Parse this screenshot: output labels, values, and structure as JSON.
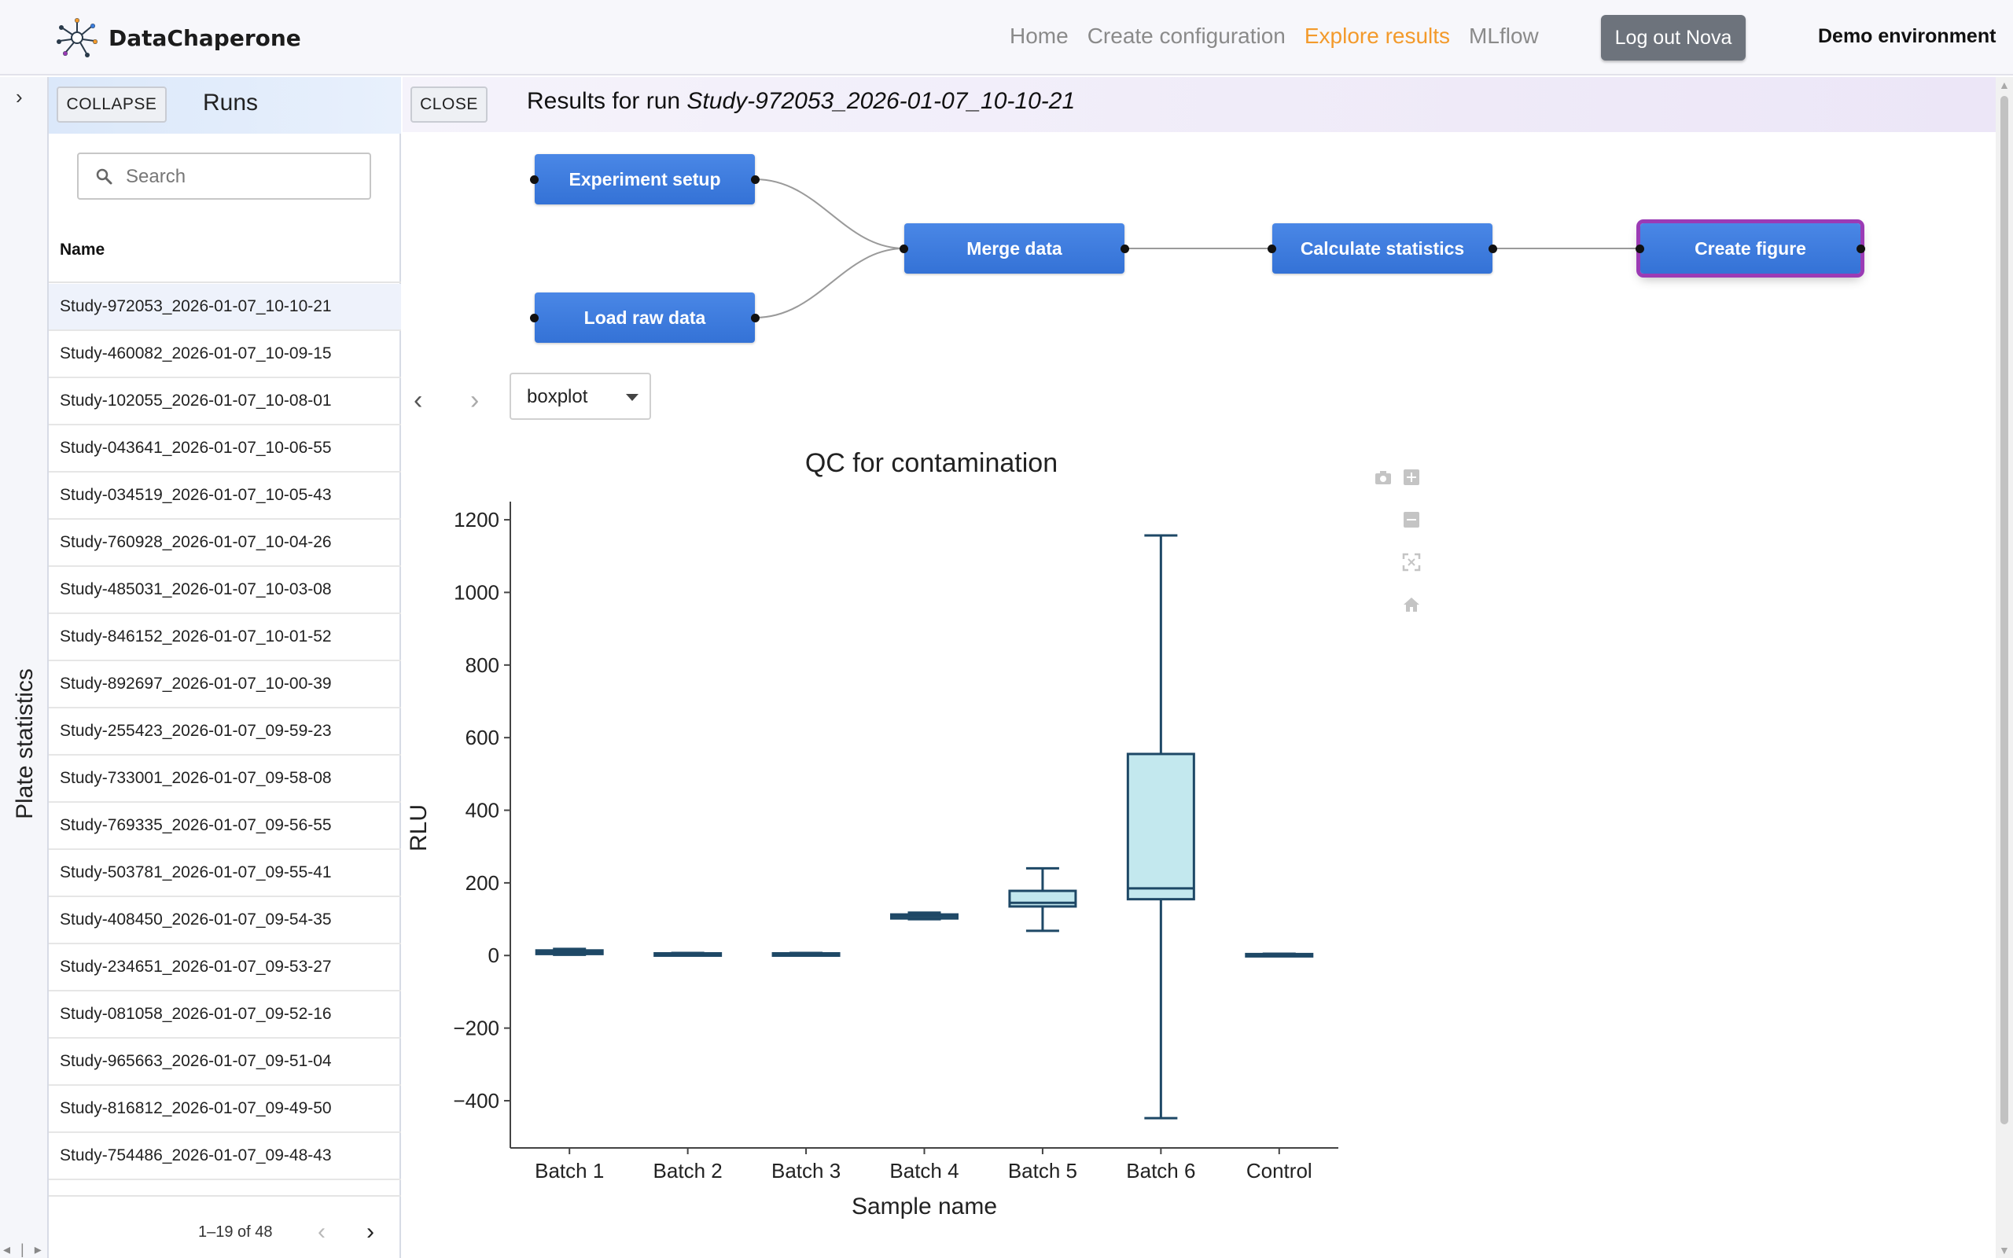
{
  "brand": {
    "name": "DataChaperone"
  },
  "nav": [
    {
      "label": "Home",
      "active": false
    },
    {
      "label": "Create configuration",
      "active": false
    },
    {
      "label": "Explore results",
      "active": true
    },
    {
      "label": "MLflow",
      "active": false
    }
  ],
  "logout_label": "Log out Nova",
  "environment_label": "Demo environment",
  "rail": {
    "title": "Plate statistics"
  },
  "runs_panel": {
    "collapse_label": "COLLAPSE",
    "title": "Runs",
    "search_placeholder": "Search",
    "column_header": "Name",
    "selected_index": 0,
    "runs": [
      "Study-972053_2026-01-07_10-10-21",
      "Study-460082_2026-01-07_10-09-15",
      "Study-102055_2026-01-07_10-08-01",
      "Study-043641_2026-01-07_10-06-55",
      "Study-034519_2026-01-07_10-05-43",
      "Study-760928_2026-01-07_10-04-26",
      "Study-485031_2026-01-07_10-03-08",
      "Study-846152_2026-01-07_10-01-52",
      "Study-892697_2026-01-07_10-00-39",
      "Study-255423_2026-01-07_09-59-23",
      "Study-733001_2026-01-07_09-58-08",
      "Study-769335_2026-01-07_09-56-55",
      "Study-503781_2026-01-07_09-55-41",
      "Study-408450_2026-01-07_09-54-35",
      "Study-234651_2026-01-07_09-53-27",
      "Study-081058_2026-01-07_09-52-16",
      "Study-965663_2026-01-07_09-51-04",
      "Study-816812_2026-01-07_09-49-50",
      "Study-754486_2026-01-07_09-48-43"
    ],
    "pagination": "1–19 of 48"
  },
  "results": {
    "close_label": "CLOSE",
    "title_prefix": "Results for run ",
    "run_name": "Study-972053_2026-01-07_10-10-21"
  },
  "pipeline": {
    "nodes": [
      {
        "id": "experiment-setup",
        "label": "Experiment setup",
        "selected": false
      },
      {
        "id": "load-raw-data",
        "label": "Load raw data",
        "selected": false
      },
      {
        "id": "merge-data",
        "label": "Merge data",
        "selected": false
      },
      {
        "id": "calculate-statistics",
        "label": "Calculate statistics",
        "selected": false
      },
      {
        "id": "create-figure",
        "label": "Create figure",
        "selected": true
      }
    ]
  },
  "figure_selector": {
    "value": "boxplot"
  },
  "modebar_icons": [
    "camera-icon",
    "zoom-in-icon",
    "zoom-out-icon",
    "autoscale-icon",
    "home-icon"
  ],
  "colors": {
    "accent": "#f39a2b",
    "node": "#3b7ddd",
    "node_selected_border": "#9b3bb5",
    "box_fill": "#c3e8ee",
    "box_line": "#1e4866"
  },
  "chart_data": {
    "type": "box",
    "title": "QC for contamination",
    "xlabel": "Sample name",
    "ylabel": "RLU",
    "ylim": [
      -530,
      1250
    ],
    "yticks": [
      -400,
      -200,
      0,
      200,
      400,
      600,
      800,
      1000,
      1200
    ],
    "categories": [
      "Batch 1",
      "Batch 2",
      "Batch 3",
      "Batch 4",
      "Batch 5",
      "Batch 6",
      "Control"
    ],
    "boxes": [
      {
        "name": "Batch 1",
        "min": 2,
        "q1": 4,
        "median": 8,
        "q3": 14,
        "max": 18
      },
      {
        "name": "Batch 2",
        "min": 1,
        "q1": 3,
        "median": 4,
        "q3": 6,
        "max": 7
      },
      {
        "name": "Batch 3",
        "min": 3,
        "q1": 4,
        "median": 5,
        "q3": 6,
        "max": 7
      },
      {
        "name": "Batch 4",
        "min": 100,
        "q1": 102,
        "median": 108,
        "q3": 113,
        "max": 118
      },
      {
        "name": "Batch 5",
        "min": 68,
        "q1": 135,
        "median": 145,
        "q3": 178,
        "max": 240
      },
      {
        "name": "Batch 6",
        "min": -448,
        "q1": 155,
        "median": 185,
        "q3": 555,
        "max": 1157
      },
      {
        "name": "Control",
        "min": 0,
        "q1": 1,
        "median": 2,
        "q3": 4,
        "max": 5
      }
    ]
  }
}
